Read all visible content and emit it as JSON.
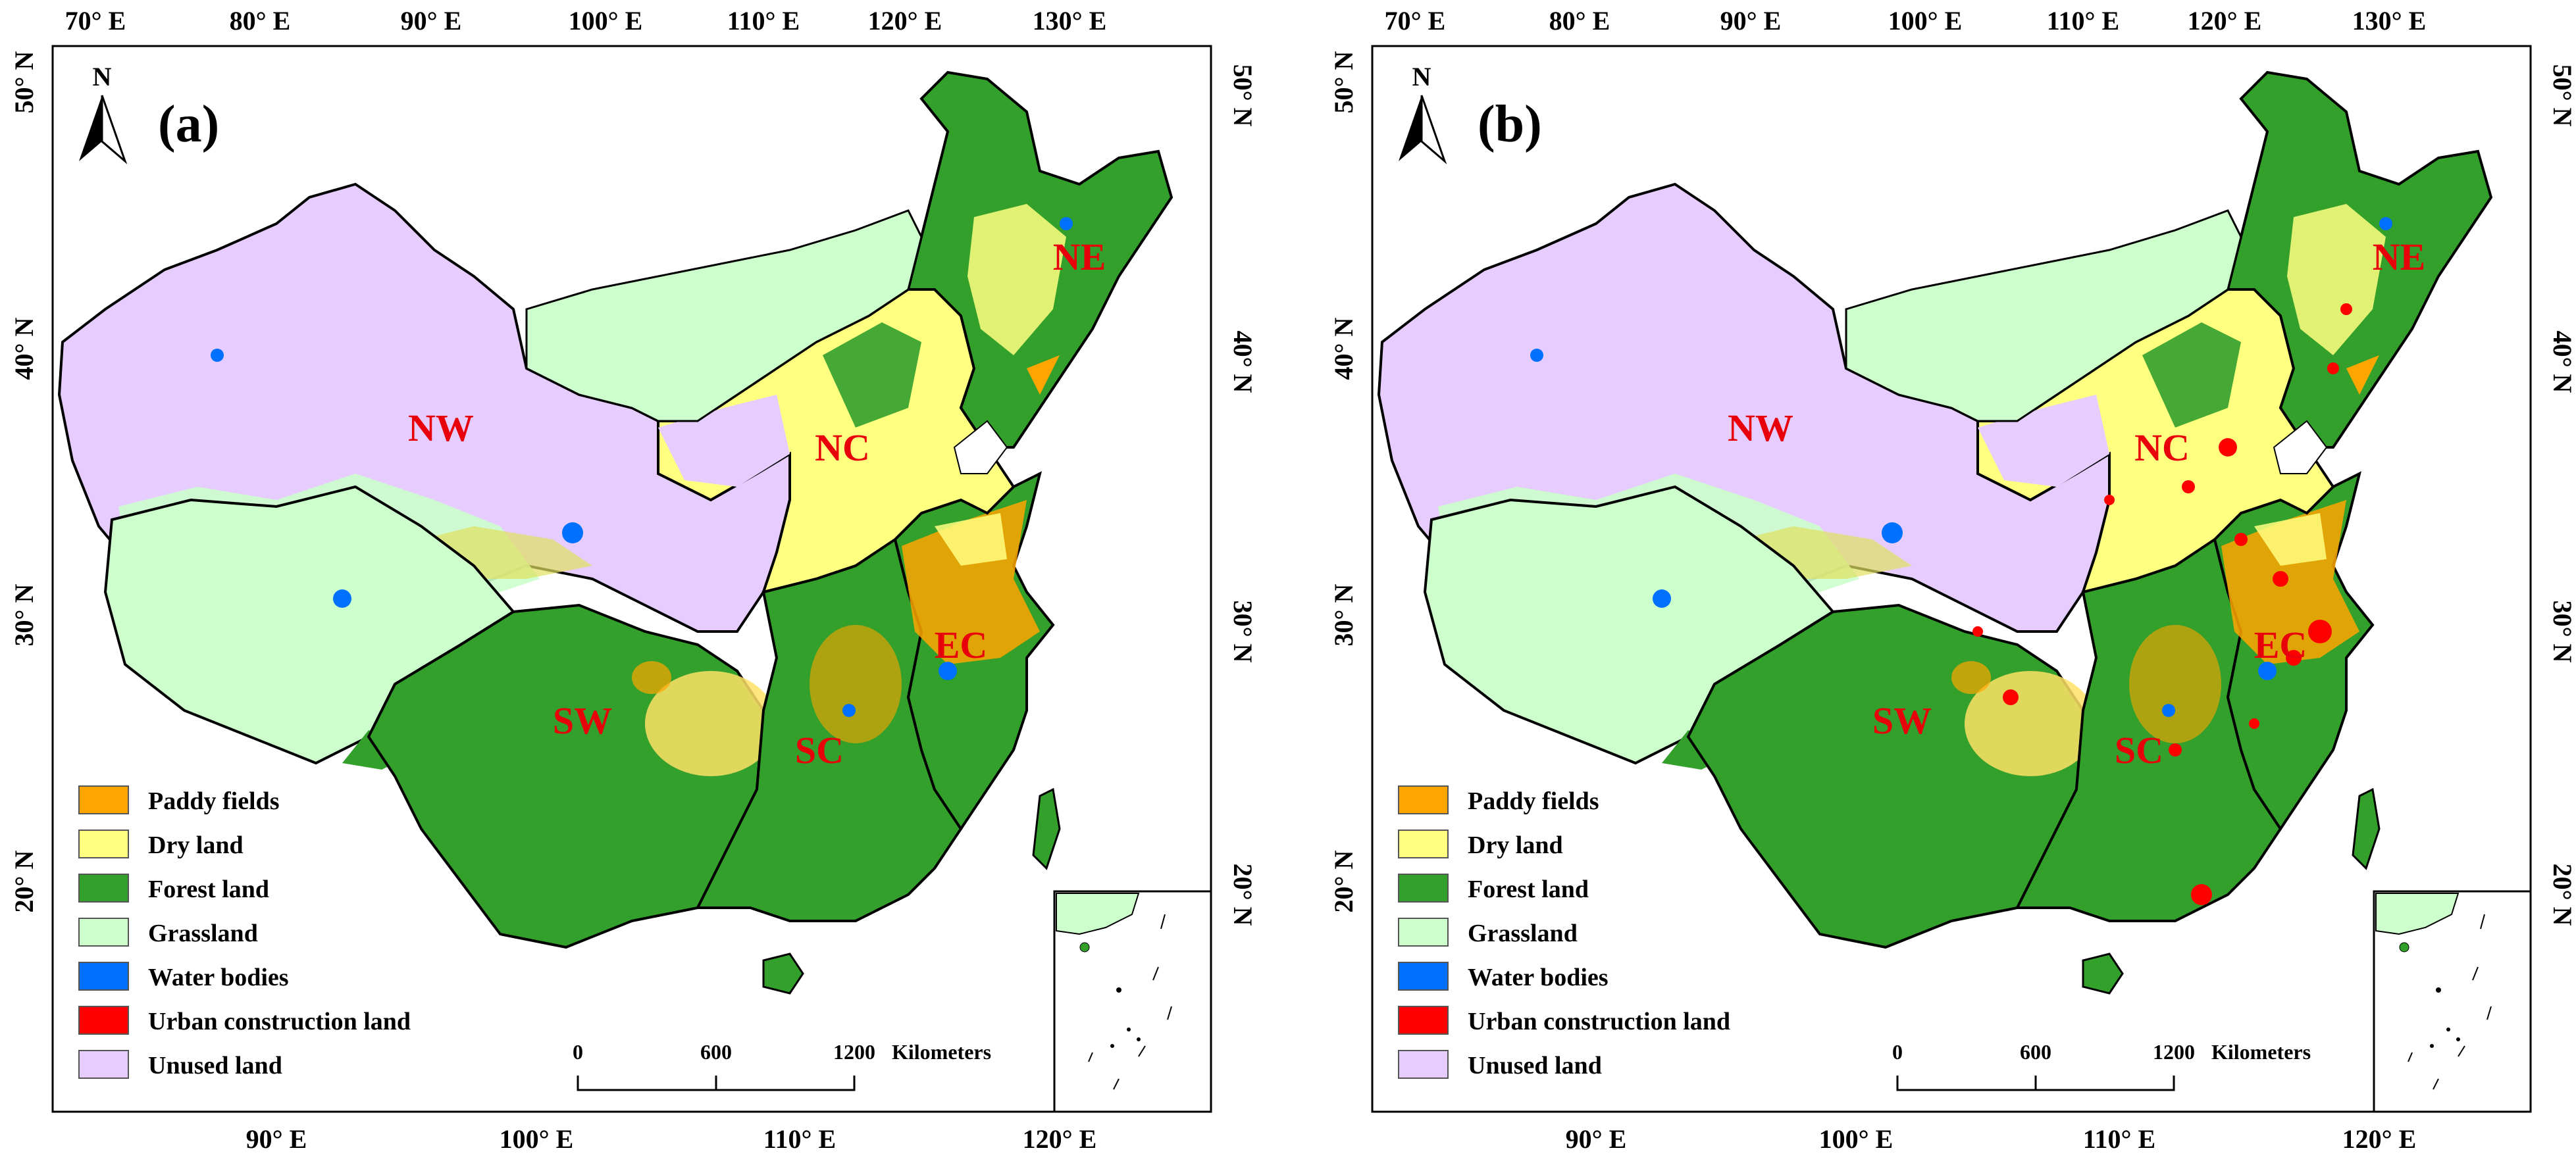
{
  "panels": [
    {
      "label": "(a)"
    },
    {
      "label": "(b)"
    }
  ],
  "north_label": "N",
  "top_lon_ticks": [
    "70° E",
    "80° E",
    "90° E",
    "100° E",
    "110° E",
    "120° E",
    "130° E"
  ],
  "bottom_lon_ticks": [
    "90° E",
    "100° E",
    "110° E",
    "120° E"
  ],
  "left_lat_ticks": [
    "50° N",
    "40° N",
    "30° N",
    "20° N"
  ],
  "right_lat_ticks": [
    "50° N",
    "40° N",
    "30° N",
    "20° N"
  ],
  "regions": [
    "NW",
    "NE",
    "NC",
    "EC",
    "SW",
    "SC"
  ],
  "legend": [
    {
      "label": "Paddy fields",
      "color": "#ffa500"
    },
    {
      "label": "Dry land",
      "color": "#ffff80"
    },
    {
      "label": "Forest land",
      "color": "#33a02c"
    },
    {
      "label": "Grassland",
      "color": "#ccffcc"
    },
    {
      "label": "Water bodies",
      "color": "#0070ff"
    },
    {
      "label": "Urban construction land",
      "color": "#ff0000"
    },
    {
      "label": "Unused land",
      "color": "#e6ccff"
    }
  ],
  "scale_bar": {
    "ticks": [
      "0",
      "600",
      "1200"
    ],
    "unit": "Kilometers"
  }
}
